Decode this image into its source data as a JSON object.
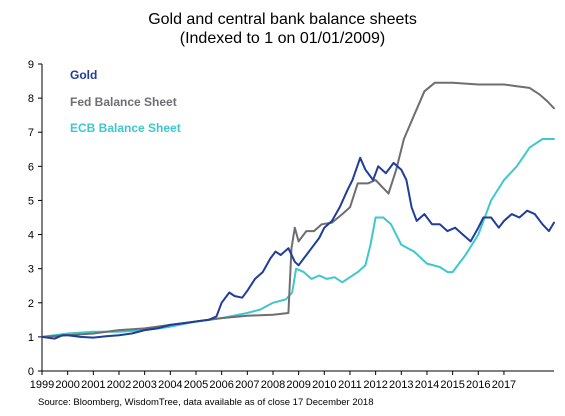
{
  "chart_data": {
    "type": "line",
    "title": "Gold and central bank balance sheets",
    "subtitle": "(Indexed to 1 on 01/01/2009)",
    "x_ticks": [
      "1999",
      "2000",
      "2001",
      "2002",
      "2003",
      "2004",
      "2005",
      "2006",
      "2007",
      "2008",
      "2009",
      "2010",
      "2011",
      "2012",
      "2013",
      "2014",
      "2015",
      "2016",
      "2017"
    ],
    "y_ticks": [
      "0",
      "1",
      "2",
      "3",
      "4",
      "5",
      "6",
      "7",
      "8",
      "9"
    ],
    "xlim": [
      1999.0,
      2018.95
    ],
    "ylim": [
      0,
      9
    ],
    "grid": false,
    "legend": "top-left",
    "source": "Source: Bloomberg, WisdomTree, data available as of close 17 December 2018",
    "series": [
      {
        "name": "Gold",
        "color": "#1f3d99",
        "x": [
          1999.0,
          1999.5,
          1999.8,
          2000.0,
          2000.5,
          2001.0,
          2001.5,
          2002.0,
          2002.5,
          2003.0,
          2003.5,
          2004.0,
          2004.5,
          2005.0,
          2005.5,
          2005.8,
          2006.0,
          2006.3,
          2006.5,
          2006.8,
          2007.0,
          2007.3,
          2007.6,
          2007.9,
          2008.1,
          2008.3,
          2008.6,
          2008.85,
          2009.0,
          2009.2,
          2009.5,
          2009.8,
          2010.0,
          2010.3,
          2010.6,
          2010.9,
          2011.1,
          2011.4,
          2011.6,
          2011.9,
          2012.1,
          2012.4,
          2012.7,
          2013.0,
          2013.2,
          2013.4,
          2013.6,
          2013.9,
          2014.2,
          2014.5,
          2014.8,
          2015.1,
          2015.4,
          2015.7,
          2016.0,
          2016.2,
          2016.5,
          2016.8,
          2017.0,
          2017.3,
          2017.6,
          2017.9,
          2018.2,
          2018.5,
          2018.75,
          2018.95
        ],
        "values": [
          1.0,
          0.95,
          1.05,
          1.05,
          1.0,
          0.98,
          1.02,
          1.05,
          1.1,
          1.2,
          1.25,
          1.35,
          1.4,
          1.45,
          1.5,
          1.6,
          2.0,
          2.3,
          2.2,
          2.15,
          2.35,
          2.7,
          2.9,
          3.3,
          3.5,
          3.4,
          3.6,
          3.2,
          3.1,
          3.3,
          3.6,
          3.9,
          4.2,
          4.4,
          4.8,
          5.3,
          5.6,
          6.25,
          5.9,
          5.6,
          6.0,
          5.8,
          6.1,
          5.9,
          5.6,
          4.8,
          4.4,
          4.6,
          4.3,
          4.3,
          4.1,
          4.2,
          4.0,
          3.8,
          4.2,
          4.5,
          4.5,
          4.2,
          4.4,
          4.6,
          4.5,
          4.7,
          4.6,
          4.3,
          4.1,
          4.35
        ]
      },
      {
        "name": "Fed Balance Sheet",
        "color": "#6d6e71",
        "x": [
          1999.0,
          2000.0,
          2001.0,
          2002.0,
          2003.0,
          2004.0,
          2005.0,
          2006.0,
          2007.0,
          2008.0,
          2008.6,
          2008.72,
          2008.85,
          2009.0,
          2009.3,
          2009.6,
          2009.9,
          2010.3,
          2010.7,
          2011.0,
          2011.3,
          2011.7,
          2012.0,
          2012.5,
          2012.8,
          2013.1,
          2013.5,
          2013.9,
          2014.3,
          2014.6,
          2015.0,
          2016.0,
          2017.0,
          2017.5,
          2018.0,
          2018.4,
          2018.7,
          2018.95
        ],
        "values": [
          1.0,
          1.05,
          1.1,
          1.2,
          1.25,
          1.35,
          1.45,
          1.55,
          1.62,
          1.65,
          1.7,
          3.6,
          4.2,
          3.8,
          4.1,
          4.1,
          4.3,
          4.35,
          4.6,
          4.8,
          5.5,
          5.5,
          5.6,
          5.2,
          5.9,
          6.8,
          7.5,
          8.2,
          8.45,
          8.45,
          8.45,
          8.4,
          8.4,
          8.35,
          8.3,
          8.1,
          7.9,
          7.7
        ]
      },
      {
        "name": "ECB Balance Sheet",
        "color": "#3ec8cc",
        "x": [
          1999.0,
          2000.0,
          2001.0,
          2002.0,
          2003.0,
          2004.0,
          2005.0,
          2006.0,
          2007.0,
          2007.5,
          2008.0,
          2008.5,
          2008.75,
          2008.9,
          2009.2,
          2009.5,
          2009.8,
          2010.1,
          2010.4,
          2010.7,
          2011.0,
          2011.3,
          2011.6,
          2011.8,
          2012.0,
          2012.3,
          2012.6,
          2013.0,
          2013.5,
          2014.0,
          2014.5,
          2014.8,
          2015.0,
          2015.5,
          2016.0,
          2016.5,
          2017.0,
          2017.5,
          2018.0,
          2018.5,
          2018.95
        ],
        "values": [
          1.0,
          1.1,
          1.15,
          1.15,
          1.2,
          1.3,
          1.45,
          1.55,
          1.7,
          1.8,
          2.0,
          2.1,
          2.3,
          3.0,
          2.9,
          2.7,
          2.8,
          2.7,
          2.75,
          2.6,
          2.75,
          2.9,
          3.1,
          3.7,
          4.5,
          4.5,
          4.3,
          3.7,
          3.5,
          3.15,
          3.05,
          2.9,
          2.9,
          3.4,
          4.0,
          5.0,
          5.6,
          6.0,
          6.55,
          6.8,
          6.8
        ]
      }
    ]
  }
}
